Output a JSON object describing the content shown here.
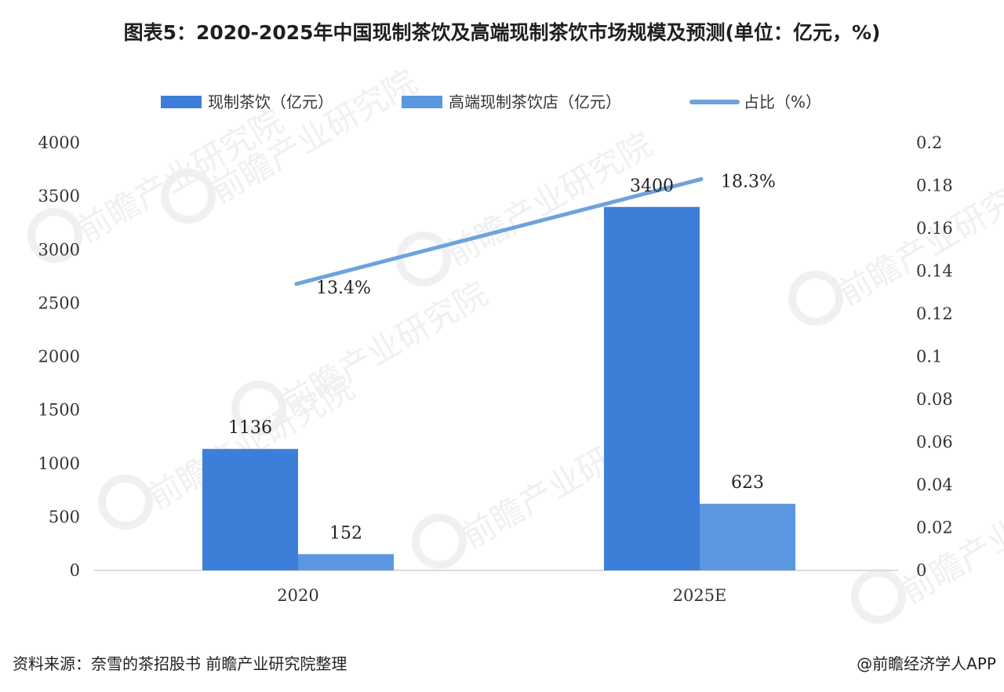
{
  "title": "图表5：2020-2025年中国现制茶饮及高端现制茶饮市场规模及预测(单位：亿元，%)",
  "source": "资料来源：奈雪的茶招股书 前瞻产业研究院整理",
  "brand": "@前瞻经济学人APP",
  "watermark": "前瞻产业研究院",
  "colors": {
    "bar_primary": "#3d7fd8",
    "bar_secondary": "#5b96e0",
    "line": "#6fa2dc"
  },
  "chart_data": {
    "type": "bar",
    "categories": [
      "2020",
      "2025E"
    ],
    "series": [
      {
        "name": "现制茶饮（亿元）",
        "type": "bar",
        "axis": "left",
        "values": [
          1136,
          3400
        ],
        "labels": [
          "1136",
          "3400"
        ]
      },
      {
        "name": "高端现制茶饮店（亿元）",
        "type": "bar",
        "axis": "left",
        "values": [
          152,
          623
        ],
        "labels": [
          "152",
          "623"
        ]
      },
      {
        "name": "占比（%）",
        "type": "line",
        "axis": "right",
        "values": [
          0.134,
          0.183
        ],
        "labels": [
          "13.4%",
          "18.3%"
        ]
      }
    ],
    "ylim": [
      0,
      4000
    ],
    "yticks": [
      "0",
      "500",
      "1000",
      "1500",
      "2000",
      "2500",
      "3000",
      "3500",
      "4000"
    ],
    "y2lim": [
      0,
      0.2
    ],
    "y2ticks": [
      "0",
      "0.02",
      "0.04",
      "0.06",
      "0.08",
      "0.1",
      "0.12",
      "0.14",
      "0.16",
      "0.18",
      "0.2"
    ],
    "legend_position": "top",
    "grid": false
  }
}
